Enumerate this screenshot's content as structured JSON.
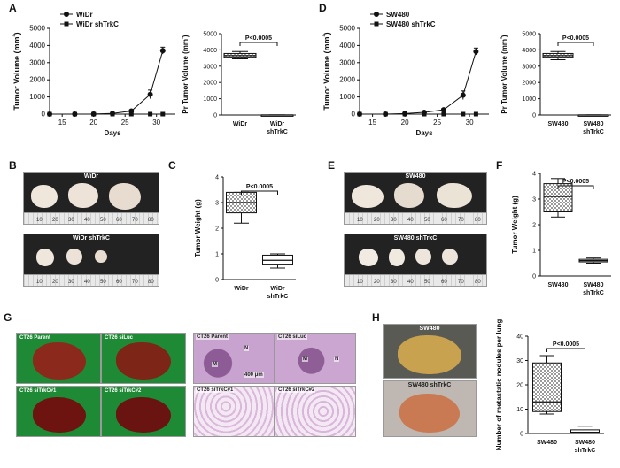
{
  "panel_labels": [
    "A",
    "B",
    "C",
    "D",
    "E",
    "F",
    "G",
    "H"
  ],
  "photos": {
    "B": {
      "top_title": "WiDr",
      "bottom_title": "WiDr shTrkC",
      "ruler_ticks": [
        "10",
        "20",
        "30",
        "40",
        "50",
        "60",
        "70",
        "80"
      ]
    },
    "E": {
      "top_title": "SW480",
      "bottom_title": "SW480 shTrkC",
      "ruler_ticks": [
        "10",
        "20",
        "30",
        "40",
        "50",
        "60",
        "70",
        "80"
      ]
    },
    "G": {
      "lung_labels": [
        "CT26 Parent",
        "CT26 siLuc",
        "CT26 siTrkC#1",
        "CT26 siTrkC#2"
      ],
      "histology_labels": [
        "CT26 Parent",
        "CT26 siLuc",
        "CT26 siTrkC#1",
        "CT26 siTrkC#2"
      ],
      "histology_marks": [
        "N",
        "M",
        "M",
        "N"
      ],
      "scale_text": "400 μm"
    },
    "H": {
      "top_title": "SW480",
      "bottom_title": "SW480 shTrkC"
    }
  },
  "chart_data": [
    {
      "id": "A-line",
      "type": "line",
      "xlabel": "Days",
      "ylabel": "Tumor Volume (mm³)",
      "xlim": [
        13,
        33
      ],
      "ylim": [
        0,
        5000
      ],
      "xticks": [
        15,
        20,
        25,
        30
      ],
      "yticks": [
        0,
        1000,
        2000,
        3000,
        4000,
        5000
      ],
      "series": [
        {
          "name": "WiDr",
          "marker": "circle",
          "x": [
            13,
            17,
            20,
            23,
            26,
            29,
            31
          ],
          "y": [
            0,
            0,
            5,
            40,
            180,
            1150,
            3700
          ],
          "err": [
            0,
            0,
            10,
            20,
            60,
            250,
            200
          ]
        },
        {
          "name": "WiDr shTrkC",
          "marker": "square",
          "x": [
            13,
            17,
            20,
            23,
            26,
            29,
            31
          ],
          "y": [
            0,
            0,
            0,
            0,
            0,
            0,
            0
          ],
          "err": [
            0,
            0,
            0,
            0,
            0,
            0,
            0
          ]
        }
      ]
    },
    {
      "id": "A-box",
      "type": "box",
      "ylabel": "Pr Tumor Volume (mm³)",
      "ylim": [
        0,
        5000
      ],
      "yticks": [
        0,
        1000,
        2000,
        3000,
        4000,
        5000
      ],
      "categories": [
        "WiDr",
        "WiDr shTrkC"
      ],
      "boxes": [
        {
          "min": 3450,
          "q1": 3550,
          "median": 3650,
          "q3": 3780,
          "max": 3900
        },
        {
          "min": 0,
          "q1": 0,
          "median": 0,
          "q3": 5,
          "max": 10
        }
      ],
      "annotation": "P<0.0005"
    },
    {
      "id": "D-line",
      "type": "line",
      "xlabel": "Days",
      "ylabel": "Tumor Volume (mm³)",
      "xlim": [
        13,
        33
      ],
      "ylim": [
        0,
        5000
      ],
      "xticks": [
        15,
        20,
        25,
        30
      ],
      "yticks": [
        0,
        1000,
        2000,
        3000,
        4000,
        5000
      ],
      "series": [
        {
          "name": "SW480",
          "marker": "circle",
          "x": [
            13,
            17,
            20,
            23,
            26,
            29,
            31
          ],
          "y": [
            0,
            0,
            30,
            100,
            250,
            1100,
            3650
          ],
          "err": [
            0,
            0,
            15,
            40,
            80,
            250,
            200
          ]
        },
        {
          "name": "SW480 shTrkC",
          "marker": "square",
          "x": [
            13,
            17,
            20,
            23,
            26,
            29,
            31
          ],
          "y": [
            0,
            0,
            0,
            0,
            0,
            0,
            0
          ],
          "err": [
            0,
            0,
            0,
            0,
            0,
            0,
            0
          ]
        }
      ]
    },
    {
      "id": "D-box",
      "type": "box",
      "ylabel": "Pr Tumor Volume (mm³)",
      "ylim": [
        0,
        5000
      ],
      "yticks": [
        0,
        1000,
        2000,
        3000,
        4000,
        5000
      ],
      "categories": [
        "SW480",
        "SW480 shTrkC"
      ],
      "boxes": [
        {
          "min": 3400,
          "q1": 3550,
          "median": 3650,
          "q3": 3780,
          "max": 3900
        },
        {
          "min": 0,
          "q1": 0,
          "median": 0,
          "q3": 5,
          "max": 10
        }
      ],
      "annotation": "P<0.0005"
    },
    {
      "id": "C-box",
      "type": "box",
      "ylabel": "Tumor Weight (g)",
      "ylim": [
        0,
        4
      ],
      "yticks": [
        0,
        1,
        2,
        3,
        4
      ],
      "categories": [
        "WiDr",
        "WiDr shTrkC"
      ],
      "boxes": [
        {
          "min": 2.2,
          "q1": 2.6,
          "median": 3.0,
          "q3": 3.4,
          "max": 3.4
        },
        {
          "min": 0.45,
          "q1": 0.6,
          "median": 0.75,
          "q3": 0.95,
          "max": 1.0
        }
      ],
      "annotation": "P<0.0005"
    },
    {
      "id": "F-box",
      "type": "box",
      "ylabel": "Tumor Weight (g)",
      "ylim": [
        0,
        4
      ],
      "yticks": [
        0,
        1,
        2,
        3,
        4
      ],
      "categories": [
        "SW480",
        "SW480 shTrkC"
      ],
      "boxes": [
        {
          "min": 2.3,
          "q1": 2.5,
          "median": 3.1,
          "q3": 3.6,
          "max": 3.8
        },
        {
          "min": 0.5,
          "q1": 0.55,
          "median": 0.6,
          "q3": 0.65,
          "max": 0.7
        }
      ],
      "annotation": "P<0.0005"
    },
    {
      "id": "H-box",
      "type": "box",
      "ylabel": "Number of metastatic nodules per lung",
      "ylim": [
        0,
        40
      ],
      "yticks": [
        0,
        10,
        20,
        30,
        40
      ],
      "categories": [
        "SW480",
        "SW480 shTrkC"
      ],
      "boxes": [
        {
          "min": 8,
          "q1": 9,
          "median": 13,
          "q3": 29,
          "max": 32
        },
        {
          "min": 0,
          "q1": 0,
          "median": 0.5,
          "q3": 1.5,
          "max": 3
        }
      ],
      "annotation": "P<0.0005"
    }
  ],
  "colors": {
    "box_fill_checker": "#9a9a9a",
    "axis": "#111111",
    "tumor": "#efe7dc",
    "lung": "#8b2a1c",
    "histology": "#c9a3cf"
  }
}
